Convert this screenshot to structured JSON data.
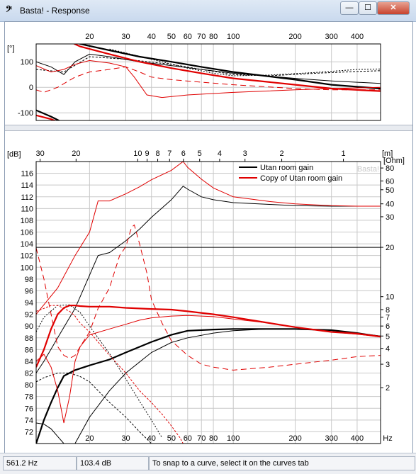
{
  "window": {
    "title": "Basta! - Response",
    "app_icon": "bass-clef-icon",
    "buttons": {
      "minimize": "—",
      "maximize": "☐",
      "close": "✕"
    }
  },
  "chart_data": [
    {
      "type": "line",
      "x_scale": "log",
      "xlim": [
        11,
        520
      ],
      "ylim": [
        -130,
        170
      ],
      "ylabel": "[°]",
      "grid": true,
      "x_ticks": [
        20,
        30,
        40,
        50,
        60,
        70,
        80,
        100,
        200,
        300,
        400
      ],
      "y_ticks": [
        100,
        0,
        -100
      ],
      "series": [
        {
          "color": "#000000",
          "width": 2.2,
          "dash": "",
          "x": [
            11,
            14,
            18,
            25,
            35,
            50,
            70,
            100,
            200,
            300,
            520
          ],
          "y": [
            260,
            200,
            170,
            145,
            120,
            100,
            80,
            60,
            30,
            10,
            -5
          ]
        },
        {
          "color": "#000000",
          "width": 1,
          "dash": "",
          "x": [
            11,
            13,
            15,
            17,
            20,
            25,
            35,
            50,
            70,
            100,
            200,
            300,
            520
          ],
          "y": [
            100,
            80,
            50,
            100,
            130,
            120,
            100,
            85,
            70,
            55,
            35,
            25,
            15
          ]
        },
        {
          "color": "#000000",
          "width": 1,
          "dash": "3,2",
          "x": [
            11,
            15,
            20,
            30,
            50,
            70,
            100,
            150,
            250,
            400,
            520
          ],
          "y": [
            70,
            60,
            120,
            110,
            90,
            70,
            50,
            45,
            55,
            62,
            65
          ]
        },
        {
          "color": "#000000",
          "width": 1,
          "dash": "2,2",
          "x": [
            25,
            40,
            60,
            80,
            100,
            150,
            250,
            400,
            520
          ],
          "y": [
            150,
            110,
            75,
            55,
            45,
            48,
            58,
            70,
            72
          ]
        },
        {
          "color": "#000000",
          "width": 2.2,
          "dash": "",
          "x": [
            11,
            13,
            15,
            17
          ],
          "y": [
            -90,
            -115,
            -140,
            -165
          ]
        },
        {
          "color": "#e00000",
          "width": 2.2,
          "dash": "",
          "x": [
            14,
            18,
            25,
            35,
            50,
            70,
            100,
            200,
            300,
            520
          ],
          "y": [
            200,
            160,
            130,
            100,
            75,
            55,
            35,
            10,
            -5,
            -15
          ]
        },
        {
          "color": "#e00000",
          "width": 1,
          "dash": "",
          "x": [
            11,
            13,
            15,
            17,
            20,
            25,
            30,
            33,
            38,
            45,
            60,
            100,
            200,
            300,
            520
          ],
          "y": [
            85,
            60,
            70,
            90,
            105,
            95,
            80,
            40,
            -30,
            -40,
            -30,
            -20,
            -10,
            -5,
            0
          ]
        },
        {
          "color": "#e00000",
          "width": 1,
          "dash": "8,5",
          "x": [
            11,
            12,
            14,
            17,
            20,
            25,
            30,
            35,
            40,
            50,
            70,
            100,
            200,
            300,
            520
          ],
          "y": [
            -10,
            -20,
            0,
            40,
            60,
            70,
            80,
            60,
            40,
            30,
            20,
            10,
            -5,
            -10,
            -10
          ]
        },
        {
          "color": "#e00000",
          "width": 2.2,
          "dash": "",
          "x": [
            11,
            13,
            15,
            17
          ],
          "y": [
            -110,
            -125,
            -145,
            -165
          ]
        }
      ]
    },
    {
      "type": "line",
      "x_scale": "log",
      "xlim": [
        11,
        520
      ],
      "ylim": [
        70,
        118
      ],
      "ylabel": "[dB]",
      "y2label": "[Ohm]",
      "x2label": "[m]",
      "xunit": "Hz",
      "grid": true,
      "x_ticks": [
        20,
        30,
        40,
        50,
        60,
        70,
        80,
        100,
        200,
        300,
        400
      ],
      "y_ticks": [
        72,
        74,
        76,
        78,
        80,
        82,
        84,
        86,
        88,
        90,
        92,
        94,
        96,
        98,
        100,
        102,
        104,
        106,
        108,
        110,
        112,
        114,
        116
      ],
      "top_ticks": [
        {
          "label": "30",
          "x": 11.5
        },
        {
          "label": "20",
          "x": 17.2
        },
        {
          "label": "10",
          "x": 34.3
        },
        {
          "label": "9",
          "x": 38.1
        },
        {
          "label": "8",
          "x": 42.9
        },
        {
          "label": "7",
          "x": 49
        },
        {
          "label": "6",
          "x": 57.2
        },
        {
          "label": "5",
          "x": 68.6
        },
        {
          "label": "4",
          "x": 85.8
        },
        {
          "label": "3",
          "x": 114
        },
        {
          "label": "2",
          "x": 172
        },
        {
          "label": "1",
          "x": 343
        }
      ],
      "ohm_ticks": [
        {
          "label": "80",
          "y": 116.9
        },
        {
          "label": "60",
          "y": 114.7
        },
        {
          "label": "50",
          "y": 113.2
        },
        {
          "label": "40",
          "y": 110.8
        },
        {
          "label": "30",
          "y": 108.6
        },
        {
          "label": "20",
          "y": 103.4
        },
        {
          "label": "10",
          "y": 95
        },
        {
          "label": "8",
          "y": 92.8
        },
        {
          "label": "7",
          "y": 91.5
        },
        {
          "label": "6",
          "y": 90
        },
        {
          "label": "5",
          "y": 88.3
        },
        {
          "label": "4",
          "y": 86.2
        },
        {
          "label": "3",
          "y": 83.5
        },
        {
          "label": "2",
          "y": 79.5
        }
      ],
      "legend": {
        "placement": "top-right",
        "entries": [
          {
            "name": "Utan room gain",
            "color": "#000000"
          },
          {
            "name": "Copy of Utan room gain",
            "color": "#e00000"
          }
        ]
      },
      "watermark": "Basta!",
      "series": [
        {
          "color": "#000000",
          "width": 1,
          "dash": "",
          "x": [
            11,
            12,
            14,
            17,
            22,
            25,
            30,
            35,
            40,
            50,
            57,
            60,
            70,
            80,
            100,
            150,
            200,
            300,
            400,
            520
          ],
          "y": [
            82,
            84,
            88,
            93,
            102,
            102.5,
            104.5,
            106.5,
            108.5,
            111.5,
            113.8,
            113.3,
            112,
            111.5,
            111,
            110.7,
            110.5,
            110.4,
            110.4,
            110.4
          ]
        },
        {
          "color": "#000000",
          "width": 1,
          "dash": "",
          "x": [
            11,
            520
          ],
          "y": [
            103.4,
            103.4
          ]
        },
        {
          "color": "#000000",
          "width": 2.2,
          "dash": "",
          "x": [
            11,
            12,
            13,
            14,
            15,
            17,
            20,
            25,
            30,
            40,
            50,
            60,
            80,
            100,
            150,
            200,
            300,
            400,
            520
          ],
          "y": [
            70,
            74,
            77,
            79.5,
            81.5,
            82.5,
            83.3,
            84.3,
            85.5,
            87.3,
            88.5,
            89.2,
            89.4,
            89.5,
            89.5,
            89.5,
            89.3,
            88.8,
            88.2
          ]
        },
        {
          "color": "#000000",
          "width": 1,
          "dash": "",
          "x": [
            11,
            12,
            13,
            14,
            15,
            16,
            17,
            20,
            25,
            30,
            40,
            50,
            60,
            80,
            100,
            150,
            200,
            300,
            400,
            520
          ],
          "y": [
            73.5,
            73.3,
            72.5,
            71.2,
            70,
            70,
            70,
            74.5,
            79,
            82,
            85.5,
            87.2,
            88,
            88.8,
            89.2,
            89.5,
            89.5,
            89.3,
            88.8,
            88.3
          ]
        },
        {
          "color": "#000000",
          "width": 1,
          "dash": "3,2",
          "x": [
            11,
            12,
            14,
            16,
            18,
            20,
            25,
            30,
            35,
            40
          ],
          "y": [
            80.5,
            81.2,
            82,
            82,
            81.4,
            80.5,
            77,
            74.5,
            72,
            70
          ]
        },
        {
          "color": "#000000",
          "width": 1,
          "dash": "2,2",
          "x": [
            11,
            12,
            14,
            16,
            18,
            20,
            25,
            30,
            35,
            40,
            45
          ],
          "y": [
            89,
            91.5,
            93.5,
            93.6,
            92.3,
            90,
            85.3,
            81,
            77.2,
            74,
            71
          ]
        },
        {
          "color": "#e00000",
          "width": 1,
          "dash": "",
          "x": [
            11,
            14,
            17,
            20,
            22,
            25,
            30,
            35,
            40,
            50,
            57,
            60,
            70,
            80,
            100,
            150,
            200,
            300,
            400,
            520
          ],
          "y": [
            92,
            96.5,
            102,
            106,
            111.3,
            111.3,
            112.5,
            113.7,
            114.9,
            116.5,
            118,
            117,
            115,
            113.5,
            112,
            111.2,
            110.8,
            110.5,
            110.4,
            110.4
          ]
        },
        {
          "color": "#e00000",
          "width": 2.2,
          "dash": "",
          "x": [
            11,
            12,
            13,
            14,
            15,
            16,
            17,
            18,
            20,
            25,
            30,
            40,
            50,
            60,
            80,
            100,
            150,
            200,
            300,
            400,
            520
          ],
          "y": [
            83,
            86,
            89.5,
            92,
            93.1,
            93.5,
            93.5,
            93.4,
            93.3,
            93.3,
            93.1,
            92.9,
            92.8,
            92.5,
            92,
            91.5,
            90.5,
            89.8,
            89,
            88.7,
            88.2
          ]
        },
        {
          "color": "#e00000",
          "width": 1,
          "dash": "",
          "x": [
            11,
            12,
            13,
            14,
            15,
            16,
            17,
            18,
            20,
            25,
            30,
            35,
            40,
            50,
            60,
            80,
            100,
            150,
            200,
            300,
            400,
            520
          ],
          "y": [
            84,
            85.2,
            83,
            79,
            73.5,
            78,
            84,
            86.5,
            88.5,
            89.5,
            90.3,
            91,
            91.4,
            91.7,
            91.8,
            91.6,
            91.2,
            90.5,
            89.8,
            89,
            88.6,
            88.2
          ]
        },
        {
          "color": "#e00000",
          "width": 1,
          "dash": "8,5",
          "x": [
            11,
            12,
            13,
            14,
            15,
            16,
            17,
            18,
            20,
            22,
            25,
            28,
            30,
            32,
            33,
            35,
            38,
            40,
            45,
            50,
            60,
            70,
            80,
            100,
            150,
            200,
            300,
            400,
            520
          ],
          "y": [
            103.3,
            98,
            92,
            86.5,
            85,
            84.5,
            85,
            86.5,
            89,
            93,
            96.5,
            102,
            103.5,
            106.8,
            107.2,
            104,
            99,
            94.5,
            90.5,
            87.5,
            85,
            83.5,
            83,
            82.5,
            83,
            83.5,
            84.2,
            84.8,
            85
          ]
        },
        {
          "color": "#e00000",
          "width": 1,
          "dash": "3,2",
          "x": [
            11,
            12,
            13,
            14,
            15,
            16,
            17,
            18,
            20,
            25,
            30,
            35,
            40,
            45,
            50,
            55,
            57
          ],
          "y": [
            92.5,
            93,
            93.5,
            93.5,
            93,
            92.5,
            91.7,
            90.5,
            89,
            85,
            82,
            79,
            77,
            75,
            73,
            71,
            70
          ]
        }
      ]
    }
  ],
  "status": {
    "frequency": "561.2 Hz",
    "level": "103.4 dB",
    "hint": "To snap to a curve, select it on the curves tab"
  }
}
